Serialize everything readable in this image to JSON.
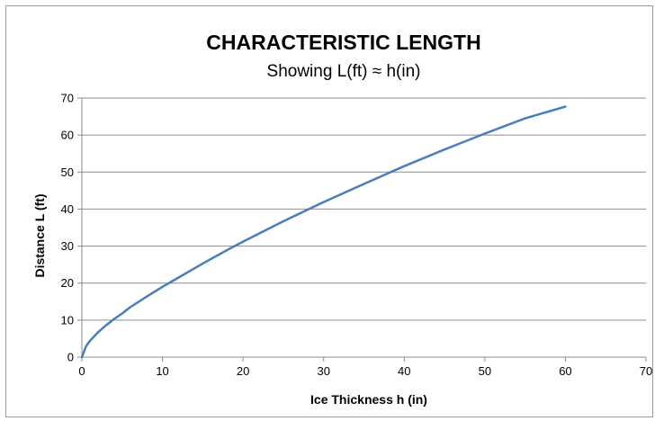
{
  "chart_data": {
    "type": "line",
    "title": "CHARACTERISTIC LENGTH",
    "subtitle": "Showing  L(ft) ≈ h(in)",
    "xlabel": "Ice Thickness  h   (in)",
    "ylabel": "Distance   L  (ft)",
    "xlim": [
      0,
      70
    ],
    "ylim": [
      0,
      70
    ],
    "xticks": [
      0,
      10,
      20,
      30,
      40,
      50,
      60,
      70
    ],
    "yticks": [
      0,
      10,
      20,
      30,
      40,
      50,
      60,
      70
    ],
    "grid": "horizontal",
    "legend": "none",
    "series": [
      {
        "color": "#4a7ebb",
        "x": [
          0,
          0.5,
          1,
          2,
          3,
          4,
          5,
          6,
          8,
          10,
          12,
          15,
          18,
          20,
          25,
          30,
          35,
          40,
          45,
          50,
          55,
          60
        ],
        "y": [
          0,
          2.9,
          4.4,
          6.7,
          8.6,
          10.3,
          11.8,
          13.5,
          16.3,
          19.0,
          21.5,
          25.3,
          28.9,
          31.2,
          36.7,
          41.9,
          46.8,
          51.6,
          56.1,
          60.4,
          64.5,
          67.7
        ]
      }
    ]
  }
}
